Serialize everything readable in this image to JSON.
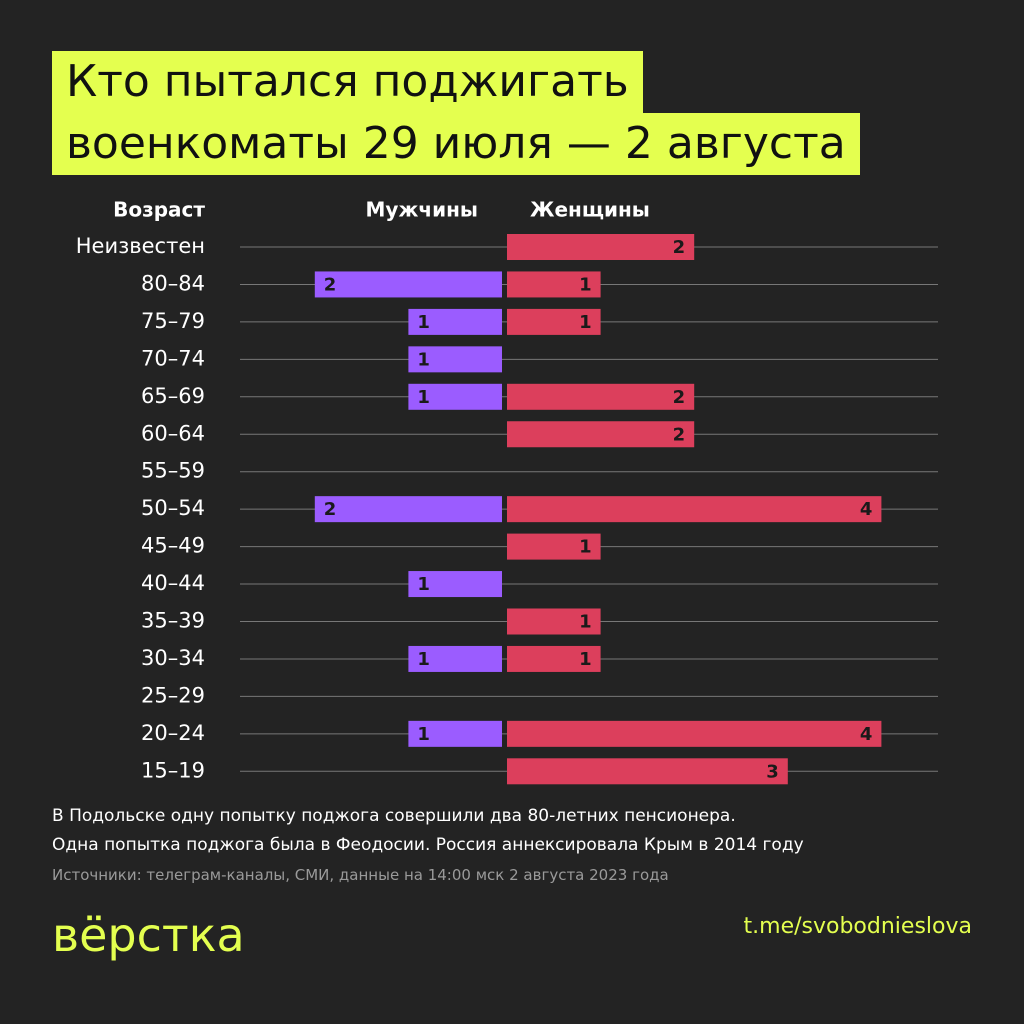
{
  "chart_data": {
    "type": "butterfly-bar",
    "title_lines": [
      "Кто пытался поджигать",
      "военкоматы 29 июля — 2 августа"
    ],
    "y_label": "Возраст",
    "categories": [
      "Неизвестен",
      "80–84",
      "75–79",
      "70–74",
      "65–69",
      "60–64",
      "55–59",
      "50–54",
      "45–49",
      "40–44",
      "35–39",
      "30–34",
      "25–29",
      "20–24",
      "15–19"
    ],
    "series": [
      {
        "name": "Мужчины",
        "color": "#9b5cff",
        "values": [
          null,
          2,
          1,
          1,
          1,
          null,
          null,
          2,
          null,
          1,
          null,
          1,
          null,
          1,
          null
        ]
      },
      {
        "name": "Женщины",
        "color": "#dc3f5c",
        "values": [
          2,
          1,
          1,
          null,
          2,
          2,
          null,
          4,
          1,
          null,
          1,
          1,
          null,
          4,
          3
        ]
      }
    ],
    "notes": [
      "В Подольске одну попытку поджога совершили два 80-летних пенсионера.",
      "Одна попытка поджога была в Феодосии. Россия аннексировала Крым в 2014 году"
    ],
    "source": "Источники: телеграм-каналы, СМИ, данные на 14:00 мск 2 августа 2023 года",
    "logo": "вёрстка",
    "link": "t.me/svobodnieslova"
  }
}
